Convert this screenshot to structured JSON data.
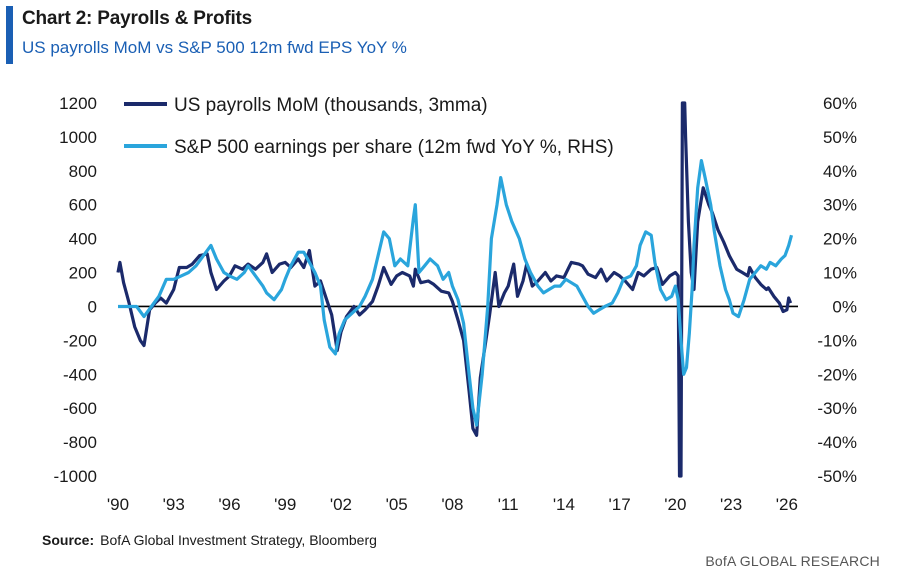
{
  "header": {
    "title": "Chart 2: Payrolls & Profits",
    "subtitle": "US payrolls MoM vs S&P 500 12m fwd EPS YoY %"
  },
  "footer": {
    "source_label": "Source:",
    "source_text": "BofA Global Investment Strategy, Bloomberg",
    "brand": "BofA GLOBAL RESEARCH"
  },
  "colors": {
    "payrolls": "#1b2a6b",
    "eps": "#2aa5dc",
    "zero_line": "#000000"
  },
  "chart_data": {
    "type": "line",
    "x_ticks": [
      "'90",
      "'93",
      "'96",
      "'99",
      "'02",
      "'05",
      "'08",
      "'11",
      "'14",
      "'17",
      "'20",
      "'23",
      "'26"
    ],
    "x_range": [
      1990,
      2026.6
    ],
    "y_left": {
      "ticks": [
        "1200",
        "1000",
        "800",
        "600",
        "400",
        "200",
        "0",
        "-200",
        "-400",
        "-600",
        "-800",
        "-1000"
      ],
      "ylim": [
        -1000,
        1200
      ]
    },
    "y_right": {
      "ticks": [
        "60%",
        "50%",
        "40%",
        "30%",
        "20%",
        "10%",
        "0%",
        "-10%",
        "-20%",
        "-30%",
        "-40%",
        "-50%"
      ],
      "ylim": [
        -50,
        60
      ]
    },
    "legend_position": "top-left",
    "series": [
      {
        "name": "US payrolls MoM (thousands, 3mma)",
        "axis": "left",
        "points": [
          [
            1990.0,
            200
          ],
          [
            1990.1,
            260
          ],
          [
            1990.3,
            140
          ],
          [
            1990.6,
            20
          ],
          [
            1990.9,
            -120
          ],
          [
            1991.2,
            -200
          ],
          [
            1991.4,
            -230
          ],
          [
            1991.7,
            -20
          ],
          [
            1992.0,
            20
          ],
          [
            1992.3,
            50
          ],
          [
            1992.6,
            20
          ],
          [
            1993.0,
            100
          ],
          [
            1993.3,
            230
          ],
          [
            1993.7,
            230
          ],
          [
            1994.0,
            250
          ],
          [
            1994.4,
            300
          ],
          [
            1994.8,
            310
          ],
          [
            1995.0,
            200
          ],
          [
            1995.3,
            100
          ],
          [
            1995.7,
            150
          ],
          [
            1996.0,
            180
          ],
          [
            1996.3,
            240
          ],
          [
            1996.7,
            220
          ],
          [
            1997.0,
            250
          ],
          [
            1997.4,
            220
          ],
          [
            1997.8,
            260
          ],
          [
            1998.0,
            310
          ],
          [
            1998.3,
            200
          ],
          [
            1998.7,
            250
          ],
          [
            1999.0,
            260
          ],
          [
            1999.3,
            230
          ],
          [
            1999.7,
            280
          ],
          [
            2000.0,
            230
          ],
          [
            2000.3,
            330
          ],
          [
            2000.6,
            120
          ],
          [
            2000.9,
            150
          ],
          [
            2001.2,
            50
          ],
          [
            2001.5,
            -50
          ],
          [
            2001.8,
            -260
          ],
          [
            2002.0,
            -150
          ],
          [
            2002.3,
            -60
          ],
          [
            2002.7,
            0
          ],
          [
            2003.0,
            -50
          ],
          [
            2003.3,
            -20
          ],
          [
            2003.7,
            30
          ],
          [
            2004.0,
            120
          ],
          [
            2004.3,
            230
          ],
          [
            2004.7,
            130
          ],
          [
            2005.0,
            180
          ],
          [
            2005.3,
            200
          ],
          [
            2005.7,
            180
          ],
          [
            2005.9,
            120
          ],
          [
            2006.0,
            220
          ],
          [
            2006.3,
            140
          ],
          [
            2006.7,
            150
          ],
          [
            2007.0,
            130
          ],
          [
            2007.4,
            90
          ],
          [
            2007.8,
            80
          ],
          [
            2008.0,
            30
          ],
          [
            2008.3,
            -80
          ],
          [
            2008.6,
            -200
          ],
          [
            2008.9,
            -500
          ],
          [
            2009.1,
            -720
          ],
          [
            2009.3,
            -760
          ],
          [
            2009.5,
            -420
          ],
          [
            2009.8,
            -200
          ],
          [
            2010.0,
            -50
          ],
          [
            2010.3,
            200
          ],
          [
            2010.5,
            0
          ],
          [
            2010.8,
            80
          ],
          [
            2011.0,
            120
          ],
          [
            2011.3,
            250
          ],
          [
            2011.5,
            60
          ],
          [
            2011.8,
            150
          ],
          [
            2012.0,
            250
          ],
          [
            2012.3,
            120
          ],
          [
            2012.6,
            150
          ],
          [
            2013.0,
            200
          ],
          [
            2013.3,
            150
          ],
          [
            2013.6,
            180
          ],
          [
            2014.0,
            170
          ],
          [
            2014.4,
            260
          ],
          [
            2014.8,
            250
          ],
          [
            2015.0,
            240
          ],
          [
            2015.3,
            190
          ],
          [
            2015.7,
            170
          ],
          [
            2016.0,
            220
          ],
          [
            2016.3,
            150
          ],
          [
            2016.7,
            200
          ],
          [
            2017.0,
            180
          ],
          [
            2017.3,
            150
          ],
          [
            2017.7,
            100
          ],
          [
            2018.0,
            200
          ],
          [
            2018.3,
            180
          ],
          [
            2018.7,
            220
          ],
          [
            2019.0,
            230
          ],
          [
            2019.3,
            130
          ],
          [
            2019.7,
            180
          ],
          [
            2020.0,
            200
          ],
          [
            2020.15,
            180
          ],
          [
            2020.22,
            -1000
          ],
          [
            2020.3,
            -1000
          ],
          [
            2020.38,
            1200
          ],
          [
            2020.5,
            1200
          ],
          [
            2020.55,
            1000
          ],
          [
            2020.7,
            500
          ],
          [
            2020.85,
            200
          ],
          [
            2021.0,
            100
          ],
          [
            2021.2,
            500
          ],
          [
            2021.5,
            700
          ],
          [
            2021.8,
            600
          ],
          [
            2022.0,
            550
          ],
          [
            2022.3,
            450
          ],
          [
            2022.6,
            380
          ],
          [
            2022.9,
            300
          ],
          [
            2023.0,
            280
          ],
          [
            2023.3,
            220
          ],
          [
            2023.6,
            200
          ],
          [
            2023.9,
            180
          ],
          [
            2024.0,
            230
          ],
          [
            2024.3,
            170
          ],
          [
            2024.6,
            130
          ],
          [
            2024.9,
            100
          ],
          [
            2025.0,
            110
          ],
          [
            2025.3,
            60
          ],
          [
            2025.6,
            20
          ],
          [
            2025.8,
            -30
          ],
          [
            2026.0,
            -20
          ],
          [
            2026.1,
            50
          ],
          [
            2026.2,
            20
          ]
        ]
      },
      {
        "name": "S&P 500 earnings per share (12m fwd YoY %, RHS)",
        "axis": "right",
        "points": [
          [
            1990.0,
            0
          ],
          [
            1990.5,
            0
          ],
          [
            1991.0,
            0
          ],
          [
            1991.4,
            -3
          ],
          [
            1991.8,
            0
          ],
          [
            1992.2,
            3
          ],
          [
            1992.6,
            8
          ],
          [
            1993.0,
            8
          ],
          [
            1993.4,
            9
          ],
          [
            1993.8,
            10
          ],
          [
            1994.2,
            12
          ],
          [
            1994.6,
            15
          ],
          [
            1995.0,
            18
          ],
          [
            1995.3,
            14
          ],
          [
            1995.7,
            10
          ],
          [
            1996.0,
            9
          ],
          [
            1996.4,
            8
          ],
          [
            1996.8,
            10
          ],
          [
            1997.0,
            12
          ],
          [
            1997.4,
            9
          ],
          [
            1997.8,
            6
          ],
          [
            1998.0,
            4
          ],
          [
            1998.4,
            2
          ],
          [
            1998.8,
            5
          ],
          [
            1999.0,
            8
          ],
          [
            1999.3,
            12
          ],
          [
            1999.7,
            16
          ],
          [
            2000.0,
            16
          ],
          [
            2000.3,
            13
          ],
          [
            2000.6,
            10
          ],
          [
            2000.9,
            6
          ],
          [
            2001.1,
            -4
          ],
          [
            2001.4,
            -12
          ],
          [
            2001.7,
            -14
          ],
          [
            2001.9,
            -8
          ],
          [
            2002.2,
            -4
          ],
          [
            2002.6,
            -2
          ],
          [
            2003.0,
            0
          ],
          [
            2003.3,
            3
          ],
          [
            2003.7,
            8
          ],
          [
            2004.0,
            15
          ],
          [
            2004.3,
            22
          ],
          [
            2004.6,
            20
          ],
          [
            2004.9,
            12
          ],
          [
            2005.2,
            14
          ],
          [
            2005.6,
            12
          ],
          [
            2005.9,
            26
          ],
          [
            2006.0,
            30
          ],
          [
            2006.2,
            10
          ],
          [
            2006.5,
            12
          ],
          [
            2006.8,
            14
          ],
          [
            2007.2,
            12
          ],
          [
            2007.5,
            8
          ],
          [
            2007.8,
            10
          ],
          [
            2008.0,
            6
          ],
          [
            2008.3,
            2
          ],
          [
            2008.6,
            -5
          ],
          [
            2008.9,
            -20
          ],
          [
            2009.1,
            -30
          ],
          [
            2009.3,
            -35
          ],
          [
            2009.6,
            -20
          ],
          [
            2009.9,
            0
          ],
          [
            2010.1,
            20
          ],
          [
            2010.4,
            30
          ],
          [
            2010.6,
            38
          ],
          [
            2010.9,
            30
          ],
          [
            2011.2,
            25
          ],
          [
            2011.6,
            20
          ],
          [
            2011.9,
            14
          ],
          [
            2012.2,
            10
          ],
          [
            2012.6,
            6
          ],
          [
            2012.9,
            4
          ],
          [
            2013.2,
            5
          ],
          [
            2013.5,
            6
          ],
          [
            2013.8,
            6
          ],
          [
            2014.1,
            8
          ],
          [
            2014.4,
            7
          ],
          [
            2014.7,
            6
          ],
          [
            2015.0,
            3
          ],
          [
            2015.3,
            0
          ],
          [
            2015.6,
            -2
          ],
          [
            2015.9,
            -1
          ],
          [
            2016.2,
            0
          ],
          [
            2016.6,
            1
          ],
          [
            2016.9,
            4
          ],
          [
            2017.2,
            8
          ],
          [
            2017.6,
            9
          ],
          [
            2017.9,
            12
          ],
          [
            2018.1,
            18
          ],
          [
            2018.4,
            22
          ],
          [
            2018.7,
            21
          ],
          [
            2018.9,
            13
          ],
          [
            2019.2,
            5
          ],
          [
            2019.5,
            2
          ],
          [
            2019.8,
            3
          ],
          [
            2020.0,
            6
          ],
          [
            2020.15,
            2
          ],
          [
            2020.3,
            -10
          ],
          [
            2020.45,
            -20
          ],
          [
            2020.6,
            -18
          ],
          [
            2020.75,
            -8
          ],
          [
            2020.9,
            5
          ],
          [
            2021.0,
            18
          ],
          [
            2021.2,
            35
          ],
          [
            2021.4,
            43
          ],
          [
            2021.6,
            38
          ],
          [
            2021.9,
            30
          ],
          [
            2022.1,
            22
          ],
          [
            2022.4,
            12
          ],
          [
            2022.7,
            5
          ],
          [
            2022.9,
            2
          ],
          [
            2023.1,
            -2
          ],
          [
            2023.4,
            -3
          ],
          [
            2023.7,
            2
          ],
          [
            2024.0,
            8
          ],
          [
            2024.3,
            10
          ],
          [
            2024.6,
            12
          ],
          [
            2024.9,
            11
          ],
          [
            2025.1,
            13
          ],
          [
            2025.4,
            12
          ],
          [
            2025.7,
            14
          ],
          [
            2025.9,
            15
          ],
          [
            2026.1,
            18
          ],
          [
            2026.25,
            21
          ]
        ]
      }
    ]
  }
}
